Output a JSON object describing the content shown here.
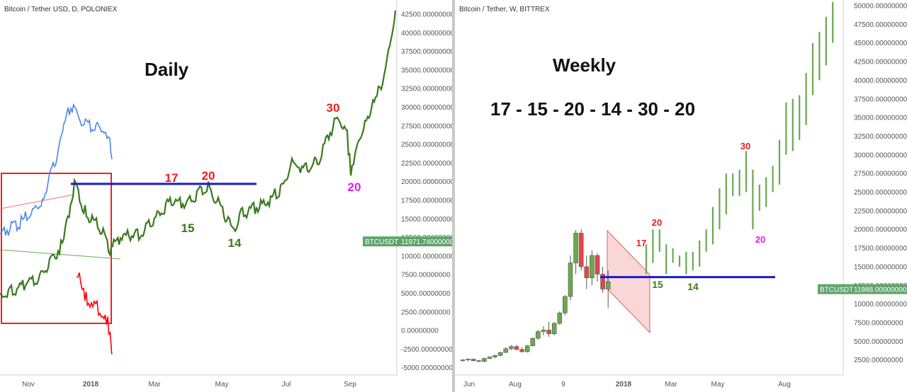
{
  "chart_data": [
    {
      "type": "line",
      "symbol": "Bitcoin / Tether USD, D, POLONIEX",
      "annotation_title": "Daily",
      "x_ticks": [
        "Nov",
        "2018",
        "Mar",
        "May",
        "Jul",
        "Sep"
      ],
      "y_ticks": [
        "42500.00000000",
        "40000.00000000",
        "37500.00000000",
        "35000.00000000",
        "32500.00000000",
        "30000.00000000",
        "27500.00000000",
        "25000.00000000",
        "22500.00000000",
        "20000.00000000",
        "17500.00000000",
        "15000.00000000",
        "12500.00000000",
        "10000.00000000",
        "7500.00000000",
        "5000.00000000",
        "2500.00000000",
        "0.00000000",
        "-2500.00000000",
        "-5000.00000000"
      ],
      "ylim": [
        -6000,
        44000
      ],
      "price_label": {
        "symbol": "BTCUSDT",
        "value": "11971.74000000",
        "y": 11971.74
      },
      "horizontal_level": 19700,
      "cycle_labels": [
        {
          "text": "17",
          "color": "#ee1c1c"
        },
        {
          "text": "20",
          "color": "#ee1c1c"
        },
        {
          "text": "15",
          "color": "#3a7a1e"
        },
        {
          "text": "14",
          "color": "#3a7a1e"
        },
        {
          "text": "30",
          "color": "#ee1c1c"
        },
        {
          "text": "20",
          "color": "#e51ce5"
        }
      ],
      "series": [
        {
          "color": "#4a86e8",
          "values": [
            [
              0,
              13000
            ],
            [
              30,
              14500
            ],
            [
              60,
              17500
            ],
            [
              75,
              22000
            ],
            [
              90,
              27000
            ],
            [
              100,
              30500
            ],
            [
              115,
              28000
            ],
            [
              130,
              27500
            ],
            [
              145,
              27000
            ],
            [
              155,
              25000
            ],
            [
              158,
              23000
            ]
          ]
        },
        {
          "color": "#ff0000",
          "values": [
            [
              108,
              6500
            ],
            [
              112,
              8000
            ],
            [
              118,
              5000
            ],
            [
              125,
              4000
            ],
            [
              135,
              3500
            ],
            [
              145,
              2000
            ],
            [
              152,
              1000
            ],
            [
              157,
              -1500
            ],
            [
              158,
              -3200
            ]
          ]
        },
        {
          "color": "#3a7a1e",
          "values": [
            [
              0,
              4500
            ],
            [
              30,
              6000
            ],
            [
              60,
              7500
            ],
            [
              90,
              12000
            ],
            [
              105,
              19800
            ],
            [
              120,
              16000
            ],
            [
              140,
              14000
            ],
            [
              155,
              11000
            ],
            [
              170,
              12500
            ],
            [
              200,
              13000
            ],
            [
              220,
              15000
            ],
            [
              240,
              17500
            ],
            [
              260,
              17000
            ],
            [
              280,
              18500
            ],
            [
              292,
              19500
            ],
            [
              310,
              17000
            ],
            [
              320,
              15000
            ],
            [
              328,
              13500
            ],
            [
              340,
              15500
            ],
            [
              360,
              16500
            ],
            [
              380,
              17500
            ],
            [
              400,
              19500
            ],
            [
              410,
              22500
            ],
            [
              430,
              21500
            ],
            [
              450,
              23000
            ],
            [
              470,
              27500
            ],
            [
              480,
              28500
            ],
            [
              490,
              26000
            ],
            [
              495,
              21500
            ],
            [
              505,
              25000
            ],
            [
              515,
              28000
            ],
            [
              530,
              31000
            ],
            [
              540,
              33500
            ],
            [
              550,
              38000
            ],
            [
              558,
              43000
            ]
          ]
        }
      ]
    },
    {
      "type": "bar",
      "symbol": "Bitcoin / Tether, W, BITTREX",
      "annotation_title": "Weekly",
      "sequence": "17 - 15 - 20 - 14 - 30 - 20",
      "x_ticks": [
        "Jun",
        "Aug",
        "9",
        "2018",
        "Mar",
        "May",
        "Aug"
      ],
      "y_ticks": [
        "50000.00000000",
        "47500.00000000",
        "45000.00000000",
        "42500.00000000",
        "40000.00000000",
        "37500.00000000",
        "35000.00000000",
        "32500.00000000",
        "30000.00000000",
        "27500.00000000",
        "25000.00000000",
        "22500.00000000",
        "20000.00000000",
        "17500.00000000",
        "15000.00000000",
        "12500.00000000",
        "10000.00000000",
        "7500.00000000",
        "5000.00000000",
        "2500.00000000"
      ],
      "ylim": [
        1000,
        51000
      ],
      "price_label": {
        "symbol": "BTCUSDT",
        "value": "11988.00000000",
        "y": 11988
      },
      "horizontal_level": 13600,
      "cycle_labels": [
        {
          "text": "17",
          "color": "#ee1c1c"
        },
        {
          "text": "15",
          "color": "#3a7a1e"
        },
        {
          "text": "20",
          "color": "#ee1c1c"
        },
        {
          "text": "14",
          "color": "#3a7a1e"
        },
        {
          "text": "30",
          "color": "#ee1c1c"
        },
        {
          "text": "20",
          "color": "#e51ce5"
        }
      ],
      "candles": [
        [
          2400,
          2600,
          2200,
          2500
        ],
        [
          2500,
          2700,
          2300,
          2600
        ],
        [
          2600,
          2650,
          2300,
          2400
        ],
        [
          2400,
          2500,
          2200,
          2300
        ],
        [
          2300,
          2800,
          2200,
          2700
        ],
        [
          2700,
          3000,
          2600,
          2900
        ],
        [
          2900,
          3200,
          2700,
          3100
        ],
        [
          3100,
          3600,
          3000,
          3500
        ],
        [
          3500,
          4200,
          3400,
          4000
        ],
        [
          4000,
          4500,
          3800,
          4300
        ],
        [
          4300,
          4500,
          3800,
          3900
        ],
        [
          3900,
          4200,
          3500,
          3600
        ],
        [
          3600,
          4500,
          3500,
          4400
        ],
        [
          4400,
          5500,
          4300,
          5400
        ],
        [
          5400,
          6500,
          5200,
          6300
        ],
        [
          6300,
          7000,
          5800,
          6500
        ],
        [
          6500,
          7600,
          5600,
          6000
        ],
        [
          6000,
          7600,
          5800,
          7400
        ],
        [
          7400,
          9000,
          7200,
          8800
        ],
        [
          8800,
          11200,
          8500,
          11000
        ],
        [
          11000,
          16500,
          10500,
          15500
        ],
        [
          15500,
          19900,
          14000,
          19500
        ],
        [
          19500,
          20000,
          14500,
          15000
        ],
        [
          15000,
          16500,
          12000,
          13500
        ],
        [
          13500,
          17200,
          12500,
          16500
        ],
        [
          16500,
          16800,
          13000,
          14000
        ],
        [
          14000,
          15000,
          11500,
          12000
        ],
        [
          12000,
          14500,
          9500,
          13000
        ]
      ],
      "future_bars": [
        [
          14000,
          18000
        ],
        [
          15500,
          20000
        ],
        [
          17000,
          20000
        ],
        [
          14000,
          18000
        ],
        [
          15500,
          17500
        ],
        [
          15000,
          16500
        ],
        [
          14000,
          17000
        ],
        [
          14500,
          17000
        ],
        [
          15000,
          18500
        ],
        [
          17000,
          20000
        ],
        [
          18000,
          23000
        ],
        [
          20000,
          25500
        ],
        [
          22000,
          27500
        ],
        [
          24500,
          27500
        ],
        [
          24500,
          28000
        ],
        [
          25000,
          30500
        ],
        [
          20000,
          28000
        ],
        [
          22500,
          26000
        ],
        [
          23000,
          27000
        ],
        [
          25000,
          28500
        ],
        [
          26000,
          32000
        ],
        [
          30000,
          37000
        ],
        [
          30500,
          37500
        ],
        [
          32000,
          38000
        ],
        [
          34000,
          41000
        ],
        [
          38000,
          45000
        ],
        [
          40000,
          46500
        ],
        [
          42000,
          48500
        ],
        [
          45000,
          50500
        ]
      ]
    }
  ]
}
